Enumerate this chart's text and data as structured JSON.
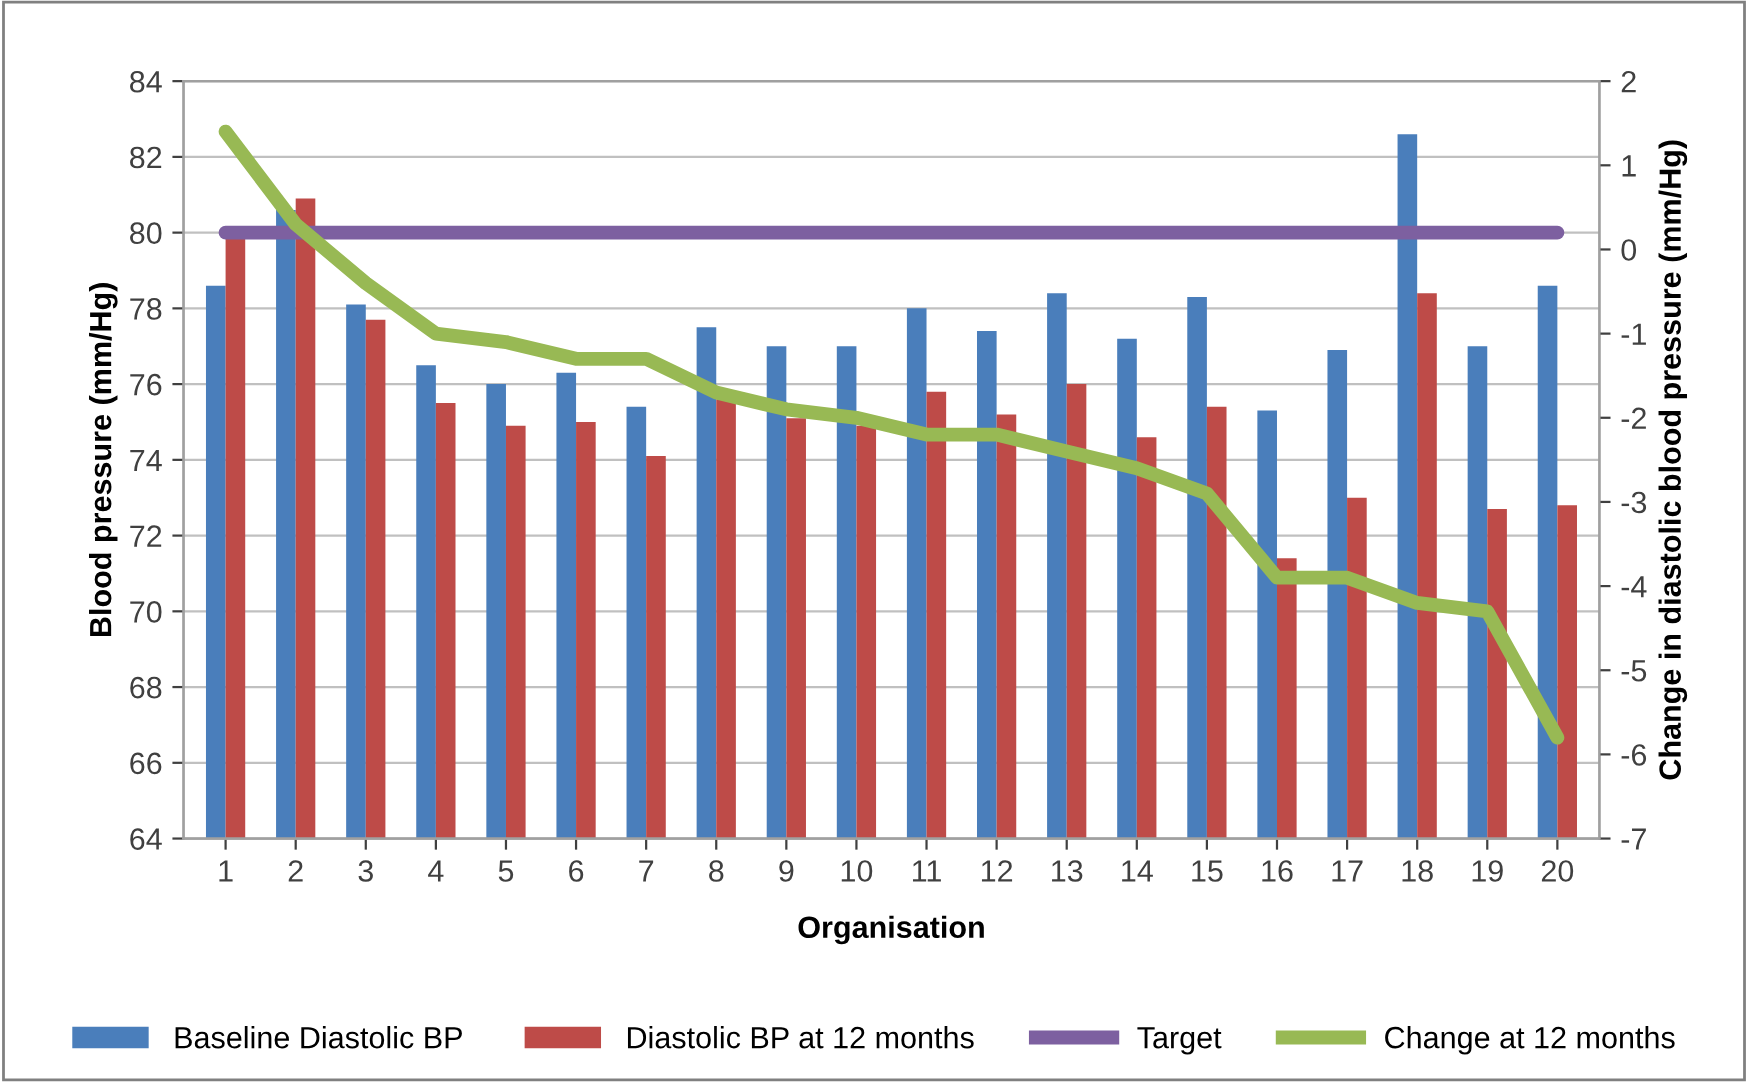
{
  "chart_data": {
    "type": "bar",
    "xlabel": "Organisation",
    "ylabel": "Blood pressure (mm/Hg)",
    "y2label": "Change in diastolic blood pressure (mm/Hg)",
    "categories": [
      "1",
      "2",
      "3",
      "4",
      "5",
      "6",
      "7",
      "8",
      "9",
      "10",
      "11",
      "12",
      "13",
      "14",
      "15",
      "16",
      "17",
      "18",
      "19",
      "20"
    ],
    "series": [
      {
        "name": "Baseline Diastolic BP",
        "color": "#4a7ebb",
        "values": [
          78.6,
          80.6,
          78.1,
          76.5,
          76.0,
          76.3,
          75.4,
          77.5,
          77.0,
          77.0,
          78.0,
          77.4,
          78.4,
          77.2,
          78.3,
          75.3,
          76.9,
          82.6,
          77.0,
          78.6
        ]
      },
      {
        "name": "Diastolic BP at 12 months",
        "color": "#be4b48",
        "values": [
          80.0,
          80.9,
          77.7,
          75.5,
          74.9,
          75.0,
          74.1,
          75.6,
          75.1,
          74.9,
          75.8,
          75.2,
          76.0,
          74.6,
          75.4,
          71.4,
          73.0,
          78.4,
          72.7,
          72.8
        ]
      },
      {
        "name": "Target",
        "type": "line",
        "color": "#7d60a0",
        "values": [
          80,
          80,
          80,
          80,
          80,
          80,
          80,
          80,
          80,
          80,
          80,
          80,
          80,
          80,
          80,
          80,
          80,
          80,
          80,
          80
        ]
      },
      {
        "name": "Change at 12 months",
        "type": "line",
        "axis": "y2",
        "color": "#98b954",
        "values": [
          1.4,
          0.3,
          -0.4,
          -1.0,
          -1.1,
          -1.3,
          -1.3,
          -1.7,
          -1.9,
          -2.0,
          -2.2,
          -2.2,
          -2.4,
          -2.6,
          -2.9,
          -3.9,
          -3.9,
          -4.2,
          -4.3,
          -5.8
        ]
      }
    ],
    "ylim": [
      64,
      84
    ],
    "yticks": [
      64,
      66,
      68,
      70,
      72,
      74,
      76,
      78,
      80,
      82,
      84
    ],
    "y2lim": [
      -7,
      2
    ],
    "y2ticks": [
      -7,
      -6,
      -5,
      -4,
      -3,
      -2,
      -1,
      0,
      1,
      2
    ],
    "grid": "y",
    "legend": "bottom",
    "marker": "none",
    "line_style": "solid"
  }
}
